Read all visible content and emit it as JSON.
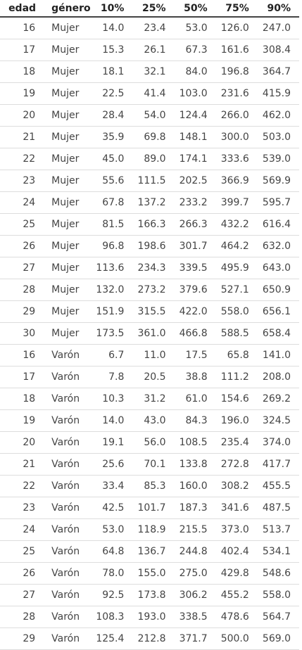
{
  "table": {
    "headers": [
      "edad",
      "género",
      "10%",
      "25%",
      "50%",
      "75%",
      "90%"
    ],
    "rows": [
      [
        "16",
        "Mujer",
        "14.0",
        "23.4",
        "53.0",
        "126.0",
        "247.0"
      ],
      [
        "17",
        "Mujer",
        "15.3",
        "26.1",
        "67.3",
        "161.6",
        "308.4"
      ],
      [
        "18",
        "Mujer",
        "18.1",
        "32.1",
        "84.0",
        "196.8",
        "364.7"
      ],
      [
        "19",
        "Mujer",
        "22.5",
        "41.4",
        "103.0",
        "231.6",
        "415.9"
      ],
      [
        "20",
        "Mujer",
        "28.4",
        "54.0",
        "124.4",
        "266.0",
        "462.0"
      ],
      [
        "21",
        "Mujer",
        "35.9",
        "69.8",
        "148.1",
        "300.0",
        "503.0"
      ],
      [
        "22",
        "Mujer",
        "45.0",
        "89.0",
        "174.1",
        "333.6",
        "539.0"
      ],
      [
        "23",
        "Mujer",
        "55.6",
        "111.5",
        "202.5",
        "366.9",
        "569.9"
      ],
      [
        "24",
        "Mujer",
        "67.8",
        "137.2",
        "233.2",
        "399.7",
        "595.7"
      ],
      [
        "25",
        "Mujer",
        "81.5",
        "166.3",
        "266.3",
        "432.2",
        "616.4"
      ],
      [
        "26",
        "Mujer",
        "96.8",
        "198.6",
        "301.7",
        "464.2",
        "632.0"
      ],
      [
        "27",
        "Mujer",
        "113.6",
        "234.3",
        "339.5",
        "495.9",
        "643.0"
      ],
      [
        "28",
        "Mujer",
        "132.0",
        "273.2",
        "379.6",
        "527.1",
        "650.9"
      ],
      [
        "29",
        "Mujer",
        "151.9",
        "315.5",
        "422.0",
        "558.0",
        "656.1"
      ],
      [
        "30",
        "Mujer",
        "173.5",
        "361.0",
        "466.8",
        "588.5",
        "658.4"
      ],
      [
        "16",
        "Varón",
        "6.7",
        "11.0",
        "17.5",
        "65.8",
        "141.0"
      ],
      [
        "17",
        "Varón",
        "7.8",
        "20.5",
        "38.8",
        "111.2",
        "208.0"
      ],
      [
        "18",
        "Varón",
        "10.3",
        "31.2",
        "61.0",
        "154.6",
        "269.2"
      ],
      [
        "19",
        "Varón",
        "14.0",
        "43.0",
        "84.3",
        "196.0",
        "324.5"
      ],
      [
        "20",
        "Varón",
        "19.1",
        "56.0",
        "108.5",
        "235.4",
        "374.0"
      ],
      [
        "21",
        "Varón",
        "25.6",
        "70.1",
        "133.8",
        "272.8",
        "417.7"
      ],
      [
        "22",
        "Varón",
        "33.4",
        "85.3",
        "160.0",
        "308.2",
        "455.5"
      ],
      [
        "23",
        "Varón",
        "42.5",
        "101.7",
        "187.3",
        "341.6",
        "487.5"
      ],
      [
        "24",
        "Varón",
        "53.0",
        "118.9",
        "215.5",
        "373.0",
        "513.7"
      ],
      [
        "25",
        "Varón",
        "64.8",
        "136.7",
        "244.8",
        "402.4",
        "534.1"
      ],
      [
        "26",
        "Varón",
        "78.0",
        "155.0",
        "275.0",
        "429.8",
        "548.6"
      ],
      [
        "27",
        "Varón",
        "92.5",
        "173.8",
        "306.2",
        "455.2",
        "558.0"
      ],
      [
        "28",
        "Varón",
        "108.3",
        "193.0",
        "338.5",
        "478.6",
        "564.7"
      ],
      [
        "29",
        "Varón",
        "125.4",
        "212.8",
        "371.7",
        "500.0",
        "569.0"
      ]
    ]
  }
}
